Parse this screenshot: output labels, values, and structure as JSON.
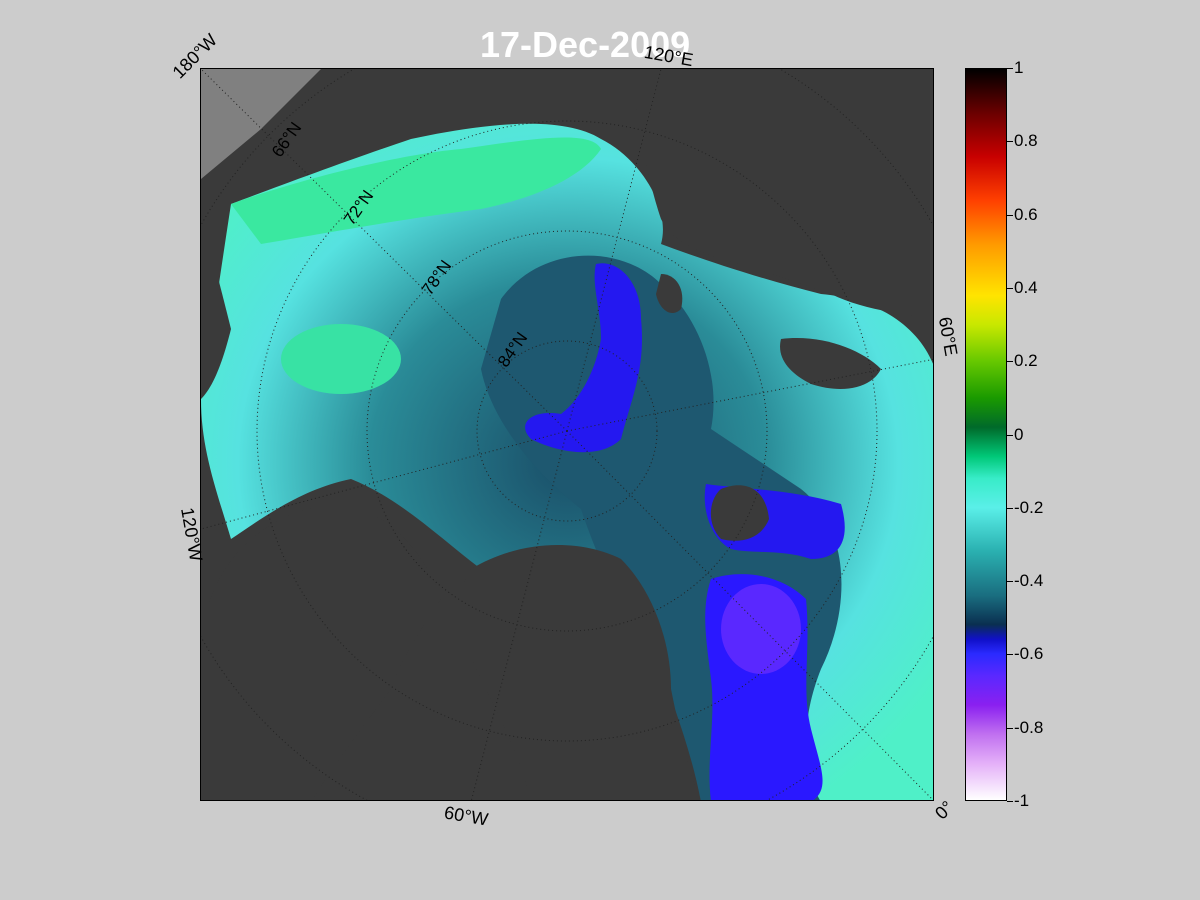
{
  "map": {
    "date": "17-Dec-2009",
    "longitude_labels": [
      "180°W",
      "120°E",
      "60°E",
      "0°",
      "60°W",
      "120°W"
    ],
    "latitude_labels": [
      "66°N",
      "72°N",
      "78°N",
      "84°N"
    ]
  },
  "colorbar": {
    "min": -1,
    "max": 1,
    "ticks": [
      "1",
      "0.8",
      "0.6",
      "0.4",
      "0.2",
      "0",
      "-0.2",
      "-0.4",
      "-0.6",
      "-0.8",
      "-1"
    ]
  },
  "colors": {
    "background": "#cccccc",
    "land": "#3a3a3a",
    "ocean_positive": "#39e6a0",
    "ocean_near_zero": "#5aefe8",
    "ocean_negative": "#1a5e70",
    "strong_negative": "#2a1aff"
  }
}
